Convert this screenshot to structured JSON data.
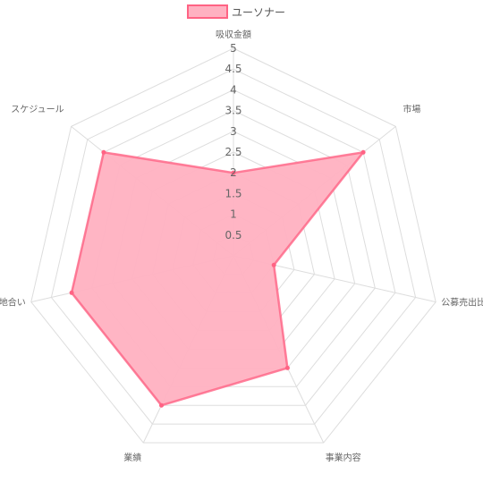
{
  "legend": {
    "label": "ユーソナー",
    "color": "#ff6384"
  },
  "chart_data": {
    "type": "radar",
    "title": "",
    "categories": [
      "吸収金額",
      "市場",
      "公募売出比",
      "事業内容",
      "業績",
      "地合い",
      "スケジュール"
    ],
    "ticks": [
      "0.5",
      "1",
      "1.5",
      "2",
      "2.5",
      "3",
      "3.5",
      "4",
      "4.5",
      "5"
    ],
    "rlim": [
      0,
      5
    ],
    "grid": true,
    "legend_position": "top",
    "series": [
      {
        "name": "ユーソナー",
        "values": [
          2,
          4,
          1,
          3,
          4,
          4,
          4
        ],
        "fill": "#ffb1c1",
        "stroke": "#ff6384"
      }
    ]
  }
}
